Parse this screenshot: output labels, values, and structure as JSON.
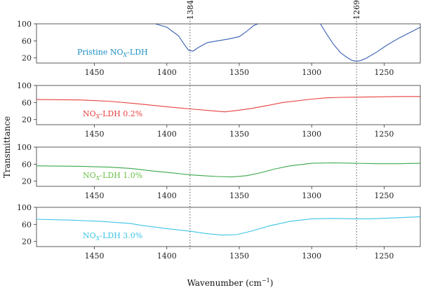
{
  "chart_data": {
    "type": "line",
    "xlabel": "Wavenumber (cm",
    "xlabel_sup": "−1",
    "xlabel_close": ")",
    "ylabel": "Transmittance",
    "xlim": [
      1490,
      1225
    ],
    "x_ticks": [
      1450,
      1400,
      1350,
      1300,
      1250
    ],
    "ylim": [
      8,
      100
    ],
    "y_ticks": [
      100,
      60,
      20
    ],
    "markers": [
      {
        "label": "1384",
        "x": 1384
      },
      {
        "label": "1269",
        "x": 1269
      }
    ],
    "panels": [
      {
        "name_main": "Pristine NO",
        "name_sub": "X",
        "name_rest": "-LDH",
        "color": "#3a5fb5",
        "label_color": "#1a8fc4",
        "segments": [
          {
            "x": [
              1408,
              1400,
              1392,
              1388,
              1385,
              1382,
              1378,
              1372,
              1365,
              1358,
              1350,
              1345,
              1340,
              1337
            ],
            "y": [
              100,
              92,
              72,
              52,
              38,
              36,
              45,
              56,
              60,
              64,
              70,
              82,
              96,
              100
            ]
          },
          {
            "x": [
              1294,
              1290,
              1285,
              1280,
              1276,
              1272,
              1269,
              1266,
              1262,
              1255,
              1248,
              1240,
              1232,
              1225
            ],
            "y": [
              100,
              78,
              52,
              32,
              22,
              14,
              12,
              14,
              20,
              34,
              50,
              66,
              80,
              92
            ]
          }
        ]
      },
      {
        "name_main": "NO",
        "name_sub": "X",
        "name_rest": "-LDH 0.2%",
        "color": "#e8413f",
        "label_color": "#e8413f",
        "segments": [
          {
            "x": [
              1490,
              1460,
              1440,
              1420,
              1400,
              1384,
              1370,
              1360,
              1350,
              1340,
              1332,
              1320,
              1300,
              1290,
              1280,
              1260,
              1240,
              1225
            ],
            "y": [
              67,
              66,
              63,
              57,
              50,
              45,
              41,
              38,
              42,
              47,
              52,
              60,
              68,
              71,
              72,
              73,
              74,
              74
            ]
          }
        ]
      },
      {
        "name_main": "NO",
        "name_sub": "X",
        "name_rest": "-LDH 1.0%",
        "color": "#3aa84a",
        "label_color": "#6cc04a",
        "segments": [
          {
            "x": [
              1490,
              1460,
              1440,
              1425,
              1410,
              1395,
              1384,
              1375,
              1365,
              1355,
              1345,
              1335,
              1325,
              1315,
              1300,
              1285,
              1270,
              1255,
              1240,
              1225
            ],
            "y": [
              56,
              55,
              53,
              50,
              44,
              39,
              35,
              33,
              31,
              30,
              33,
              40,
              49,
              56,
              62,
              63,
              62,
              61,
              61,
              62
            ]
          }
        ]
      },
      {
        "name_main": "NO",
        "name_sub": "X",
        "name_rest": "-LDH 3.0%",
        "color": "#3cc4e6",
        "label_color": "#3cc4e6",
        "segments": [
          {
            "x": [
              1490,
              1465,
              1445,
              1425,
              1418,
              1400,
              1384,
              1372,
              1362,
              1352,
              1342,
              1330,
              1315,
              1300,
              1285,
              1270,
              1260,
              1245,
              1225
            ],
            "y": [
              72,
              70,
              67,
              62,
              58,
              50,
              44,
              38,
              35,
              36,
              44,
              56,
              67,
              73,
              74,
              73,
              73,
              75,
              78
            ]
          }
        ]
      }
    ]
  }
}
